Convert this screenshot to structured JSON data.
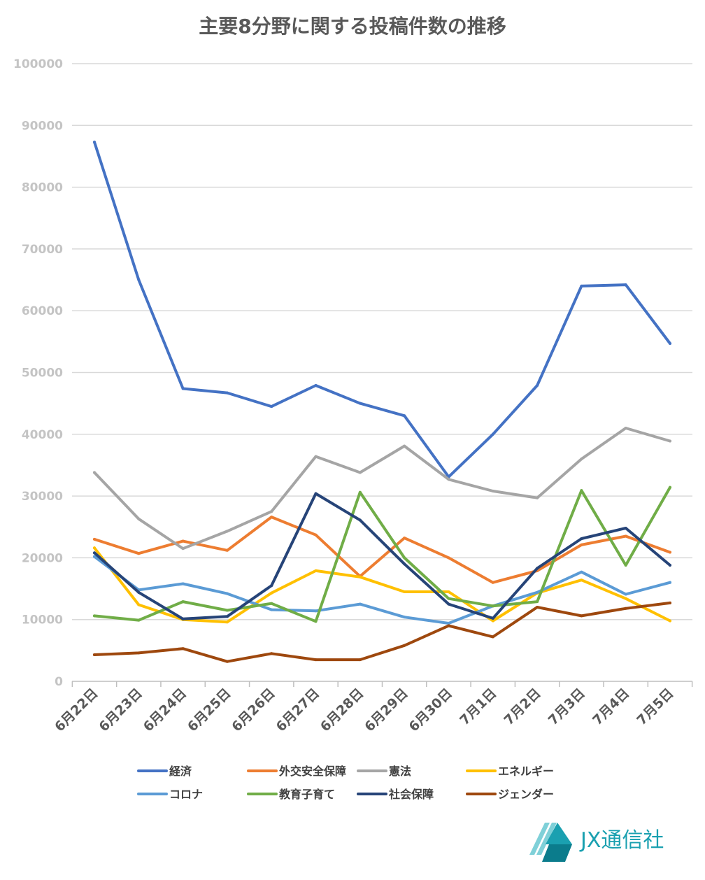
{
  "chart_data": {
    "type": "line",
    "title": "主要8分野に関する投稿件数の推移",
    "xlabel": "",
    "ylabel": "",
    "ylim": [
      0,
      100000
    ],
    "yticks": [
      0,
      10000,
      20000,
      30000,
      40000,
      50000,
      60000,
      70000,
      80000,
      90000,
      100000
    ],
    "ytick_labels": [
      "0",
      "10000",
      "20000",
      "30000",
      "40000",
      "50000",
      "60000",
      "70000",
      "80000",
      "90000",
      "100000"
    ],
    "grid": "horizontal",
    "legend_position": "bottom",
    "categories": [
      "6月22日",
      "6月23日",
      "6月24日",
      "6月25日",
      "6月26日",
      "6月27日",
      "6月28日",
      "6月29日",
      "6月30日",
      "7月1日",
      "7月2日",
      "7月3日",
      "7月4日",
      "7月5日"
    ],
    "series": [
      {
        "name": "経済",
        "color": "#4472c4",
        "values": [
          87300,
          65000,
          47400,
          46700,
          44500,
          47900,
          45000,
          43000,
          33100,
          40000,
          47900,
          64000,
          64200,
          54700
        ]
      },
      {
        "name": "外交安全保障",
        "color": "#ed7d31",
        "values": [
          23000,
          20700,
          22700,
          21200,
          26600,
          23700,
          17000,
          23200,
          20000,
          16000,
          17900,
          22100,
          23500,
          20900
        ]
      },
      {
        "name": "憲法",
        "color": "#a5a5a5",
        "values": [
          33800,
          26300,
          21500,
          24300,
          27500,
          36400,
          33800,
          38100,
          32700,
          30800,
          29700,
          36000,
          41000,
          38900
        ]
      },
      {
        "name": "エネルギー",
        "color": "#ffc000",
        "values": [
          21600,
          12400,
          10000,
          9600,
          14300,
          17900,
          16900,
          14500,
          14500,
          9800,
          14300,
          16400,
          13400,
          9800
        ]
      },
      {
        "name": "コロナ",
        "color": "#5b9bd5",
        "values": [
          20200,
          14800,
          15800,
          14200,
          11600,
          11400,
          12500,
          10400,
          9400,
          12200,
          14400,
          17700,
          14100,
          16000
        ]
      },
      {
        "name": "教育子育て",
        "color": "#70ad47",
        "values": [
          10600,
          9900,
          12900,
          11500,
          12600,
          9700,
          30600,
          20000,
          13400,
          12200,
          12900,
          30900,
          18800,
          31400
        ]
      },
      {
        "name": "社会保障",
        "color": "#264478",
        "values": [
          20800,
          14400,
          10100,
          10500,
          15500,
          30400,
          26100,
          19000,
          12500,
          10200,
          18300,
          23100,
          24800,
          18800
        ]
      },
      {
        "name": "ジェンダー",
        "color": "#9e480e",
        "values": [
          4300,
          4600,
          5300,
          3200,
          4500,
          3500,
          3500,
          5800,
          9000,
          7200,
          12000,
          10600,
          11800,
          12700
        ]
      }
    ]
  },
  "brand": {
    "name": "JX通信社",
    "colors": {
      "light": "#7fd0d8",
      "mid": "#1aa0b0",
      "dark": "#0b7c8c"
    }
  },
  "style": {
    "gridline_color": "#d9d9d9",
    "axis_color": "#bfbfbf"
  }
}
